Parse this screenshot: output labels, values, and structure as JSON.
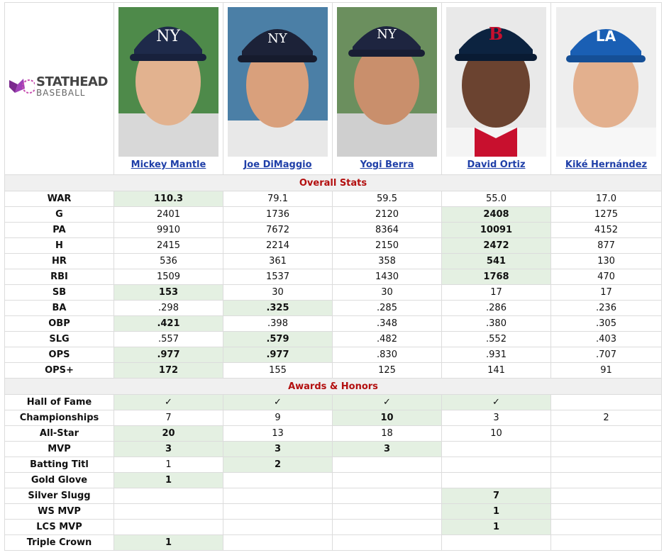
{
  "brand": {
    "name": "STATHEAD",
    "sub": "BASEBALL"
  },
  "players": [
    {
      "name": "Mickey Mantle"
    },
    {
      "name": "Joe DiMaggio"
    },
    {
      "name": "Yogi Berra"
    },
    {
      "name": "David Ortiz"
    },
    {
      "name": "Kiké Hernández"
    }
  ],
  "sections": {
    "overall": "Overall Stats",
    "awards": "Awards & Honors"
  },
  "overall_rows": [
    {
      "label": "WAR",
      "values": [
        "110.3",
        "79.1",
        "59.5",
        "55.0",
        "17.0"
      ],
      "best": [
        0
      ]
    },
    {
      "label": "G",
      "values": [
        "2401",
        "1736",
        "2120",
        "2408",
        "1275"
      ],
      "best": [
        3
      ]
    },
    {
      "label": "PA",
      "values": [
        "9910",
        "7672",
        "8364",
        "10091",
        "4152"
      ],
      "best": [
        3
      ]
    },
    {
      "label": "H",
      "values": [
        "2415",
        "2214",
        "2150",
        "2472",
        "877"
      ],
      "best": [
        3
      ]
    },
    {
      "label": "HR",
      "values": [
        "536",
        "361",
        "358",
        "541",
        "130"
      ],
      "best": [
        3
      ]
    },
    {
      "label": "RBI",
      "values": [
        "1509",
        "1537",
        "1430",
        "1768",
        "470"
      ],
      "best": [
        3
      ]
    },
    {
      "label": "SB",
      "values": [
        "153",
        "30",
        "30",
        "17",
        "17"
      ],
      "best": [
        0
      ]
    },
    {
      "label": "BA",
      "values": [
        ".298",
        ".325",
        ".285",
        ".286",
        ".236"
      ],
      "best": [
        1
      ]
    },
    {
      "label": "OBP",
      "values": [
        ".421",
        ".398",
        ".348",
        ".380",
        ".305"
      ],
      "best": [
        0
      ]
    },
    {
      "label": "SLG",
      "values": [
        ".557",
        ".579",
        ".482",
        ".552",
        ".403"
      ],
      "best": [
        1
      ]
    },
    {
      "label": "OPS",
      "values": [
        ".977",
        ".977",
        ".830",
        ".931",
        ".707"
      ],
      "best": [
        0,
        1
      ]
    },
    {
      "label": "OPS+",
      "values": [
        "172",
        "155",
        "125",
        "141",
        "91"
      ],
      "best": [
        0
      ]
    }
  ],
  "award_rows": [
    {
      "label": "Hall of Fame",
      "values": [
        "✓",
        "✓",
        "✓",
        "✓",
        ""
      ],
      "best": [
        0,
        1,
        2,
        3
      ]
    },
    {
      "label": "Championships",
      "values": [
        "7",
        "9",
        "10",
        "3",
        "2"
      ],
      "best": [
        2
      ]
    },
    {
      "label": "All-Star",
      "values": [
        "20",
        "13",
        "18",
        "10",
        ""
      ],
      "best": [
        0
      ]
    },
    {
      "label": "MVP",
      "values": [
        "3",
        "3",
        "3",
        "",
        ""
      ],
      "best": [
        0,
        1,
        2
      ]
    },
    {
      "label": "Batting Titl",
      "values": [
        "1",
        "2",
        "",
        "",
        ""
      ],
      "best": [
        1
      ]
    },
    {
      "label": "Gold Glove",
      "values": [
        "1",
        "",
        "",
        "",
        ""
      ],
      "best": [
        0
      ]
    },
    {
      "label": "Silver Slugg",
      "values": [
        "",
        "",
        "",
        "7",
        ""
      ],
      "best": [
        3
      ]
    },
    {
      "label": "WS MVP",
      "values": [
        "",
        "",
        "",
        "1",
        ""
      ],
      "best": [
        3
      ]
    },
    {
      "label": "LCS MVP",
      "values": [
        "",
        "",
        "",
        "1",
        ""
      ],
      "best": [
        3
      ]
    },
    {
      "label": "Triple Crown",
      "values": [
        "1",
        "",
        "",
        "",
        ""
      ],
      "best": [
        0
      ]
    }
  ]
}
